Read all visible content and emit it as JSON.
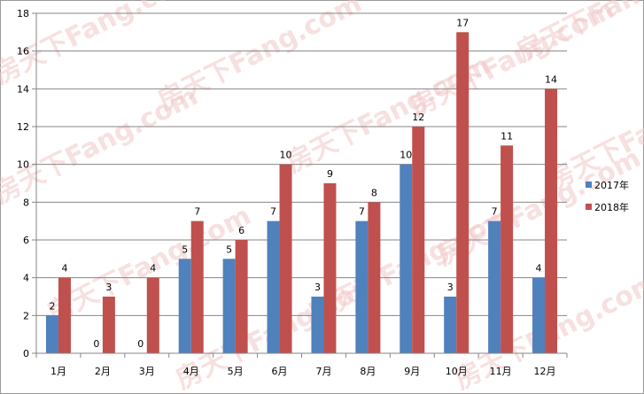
{
  "chart_data": {
    "type": "bar",
    "title": "",
    "xlabel": "",
    "ylabel": "",
    "categories": [
      "1月",
      "2月",
      "3月",
      "4月",
      "5月",
      "6月",
      "7月",
      "8月",
      "9月",
      "10月",
      "11月",
      "12月"
    ],
    "series": [
      {
        "name": "2017年",
        "color": "#4f81bd",
        "values": [
          2,
          0,
          0,
          5,
          5,
          7,
          3,
          7,
          10,
          3,
          7,
          4
        ]
      },
      {
        "name": "2018年",
        "color": "#c0504d",
        "values": [
          4,
          3,
          4,
          7,
          6,
          10,
          9,
          8,
          12,
          17,
          11,
          14
        ]
      }
    ],
    "ylim": [
      0,
      18
    ],
    "yticks": [
      0,
      2,
      4,
      6,
      8,
      10,
      12,
      14,
      16,
      18
    ],
    "grid": true,
    "legend_position": "right",
    "data_labels": true
  },
  "watermark": {
    "text": "房天下Fang.com",
    "color": "#f2c8c8"
  }
}
